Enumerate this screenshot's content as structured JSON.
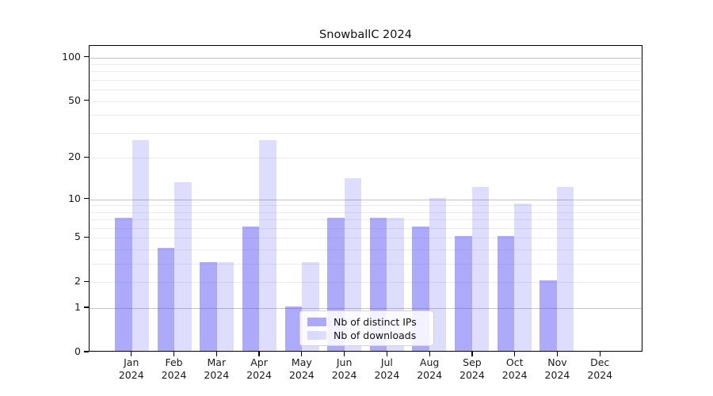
{
  "figure": {
    "title": "SnowballC 2024"
  },
  "legend": {
    "items": [
      {
        "label": "Nb of distinct IPs",
        "color": "rgba(91,86,243,0.50)"
      },
      {
        "label": "Nb of downloads",
        "color": "rgba(91,86,243,0.20)"
      }
    ]
  },
  "colors": {
    "bar_dark": "rgba(91,86,243,0.50)",
    "bar_light": "rgba(91,86,243,0.20)",
    "grid_major": "#c3c3c3",
    "grid_minor": "#ebebeb",
    "spine": "#000000",
    "text": "#1a1a1a"
  },
  "chart_data": {
    "type": "bar",
    "title": "SnowballC 2024",
    "categories": [
      "Jan",
      "Feb",
      "Mar",
      "Apr",
      "May",
      "Jun",
      "Jul",
      "Aug",
      "Sep",
      "Oct",
      "Nov",
      "Dec"
    ],
    "category_year": "2024",
    "series": [
      {
        "name": "Nb of distinct IPs",
        "key": "ips",
        "values": [
          7,
          4,
          3,
          6,
          1,
          7,
          7,
          6,
          5,
          5,
          2,
          0
        ],
        "color": "rgba(91,86,243,0.50)"
      },
      {
        "name": "Nb of downloads",
        "key": "downloads",
        "values": [
          26,
          13,
          3,
          26,
          3,
          14,
          7,
          10,
          12,
          9,
          12,
          0
        ],
        "color": "rgba(91,86,243,0.20)"
      }
    ],
    "xlabel": "",
    "ylabel": "",
    "yscale": "log1p",
    "ylim": [
      0,
      120
    ],
    "yticks": [
      0,
      1,
      2,
      5,
      10,
      20,
      50,
      100
    ],
    "grid_major": [
      1,
      10,
      100
    ],
    "grid_minor": [
      2,
      3,
      4,
      5,
      6,
      7,
      8,
      9,
      20,
      30,
      40,
      50,
      60,
      70,
      80,
      90
    ],
    "grid": true,
    "legend_position": "lower center"
  }
}
